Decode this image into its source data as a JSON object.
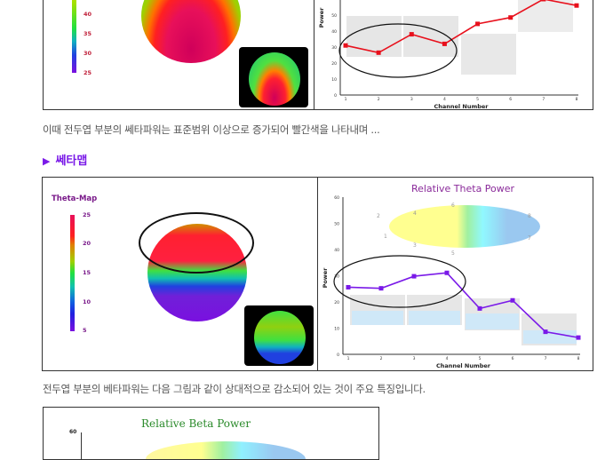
{
  "figure1": {
    "colorbar_labels": [
      "40",
      "35",
      "30",
      "25"
    ],
    "chart": {
      "xlabel": "Channel Number",
      "ylabel": "Power"
    }
  },
  "paragraph1": "이때 전두엽 부분의 쎄타파워는 표준범위 이상으로 증가되어 빨간색을 나타내며 ...",
  "section_heading": {
    "icon": "triangle-right-icon",
    "label": "쎄타맵"
  },
  "figure2": {
    "map_title": "Theta-Map",
    "colorbar_labels": [
      "25",
      "20",
      "15",
      "10",
      "5"
    ],
    "chart": {
      "title": "Relative Theta Power",
      "xlabel": "Channel Number",
      "ylabel": "Power"
    },
    "electrode_labels": [
      "1",
      "2",
      "3",
      "4",
      "5",
      "6",
      "7",
      "8"
    ]
  },
  "paragraph2": "전두엽 부분의 베타파워는 다음 그림과 같이 상대적으로 감소되어 있는 것이 주요 특징입니다.",
  "figure3": {
    "chart": {
      "title": "Relative Beta Power",
      "ytick_top": "60"
    }
  },
  "colors": {
    "heading": "#7a1ae8",
    "series1": "#e8101c",
    "series2": "#7a1ae8",
    "beta_title": "#2a8a2a",
    "theta_title": "#8a2a9a"
  },
  "chart_data": [
    {
      "type": "line",
      "title": "",
      "xlabel": "Channel Number",
      "ylabel": "Power",
      "x": [
        1,
        2,
        3,
        4,
        5,
        6,
        7,
        8
      ],
      "ylim": [
        0,
        60
      ],
      "yticks": [
        0,
        10,
        20,
        30,
        40,
        50
      ],
      "series": [
        {
          "name": "Power",
          "values": [
            31,
            26.5,
            38,
            32,
            44.5,
            48.5,
            60,
            56
          ]
        }
      ]
    },
    {
      "type": "line",
      "title": "Relative Theta Power",
      "xlabel": "Channel Number",
      "ylabel": "Power",
      "x": [
        1,
        2,
        3,
        4,
        5,
        6,
        7,
        8
      ],
      "ylim": [
        0,
        60
      ],
      "yticks": [
        0,
        10,
        20,
        30,
        40,
        50,
        60
      ],
      "series": [
        {
          "name": "Relative Theta Power",
          "values": [
            25.6,
            25.2,
            29.8,
            31.1,
            17.5,
            20.6,
            8.6,
            6.4
          ]
        }
      ]
    }
  ]
}
